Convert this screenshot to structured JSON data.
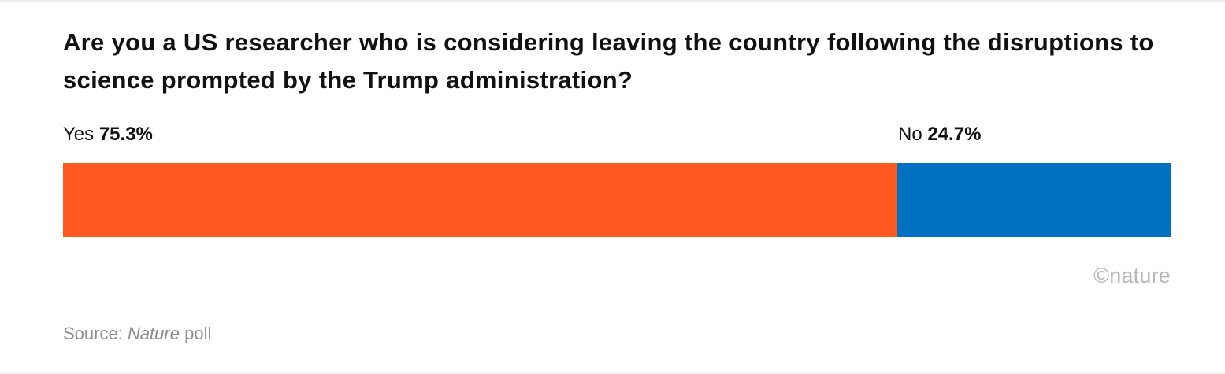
{
  "title": "Are you a US researcher who is considering leaving the country following the disruptions to science prompted by the Trump administration?",
  "chart_data": {
    "type": "bar",
    "orientation": "horizontal-stacked",
    "categories": [
      "Yes",
      "No"
    ],
    "values": [
      75.3,
      24.7
    ],
    "value_labels": [
      "75.3%",
      "24.7%"
    ],
    "colors": [
      "#ff5a1f",
      "#0070c0"
    ],
    "xlim": [
      0,
      100
    ],
    "grid": false
  },
  "credit": "©nature",
  "source": {
    "prefix": "Source: ",
    "italic": "Nature",
    "suffix": " poll"
  }
}
